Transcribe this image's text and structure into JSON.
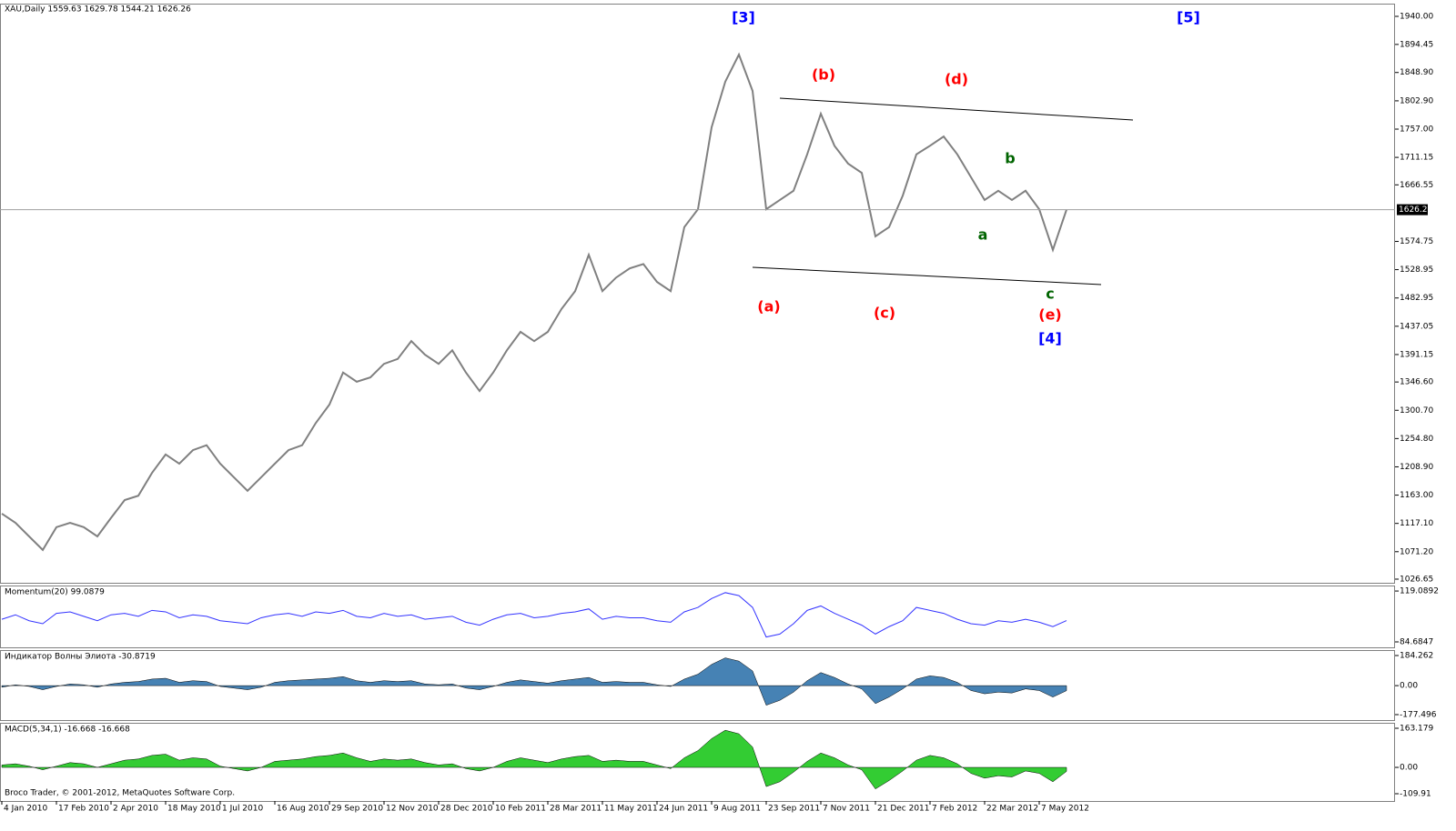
{
  "chart_data": [
    {
      "type": "line",
      "title": "XAU,Daily  1559.63 1629.78 1544.21 1626.26",
      "color": "#808080",
      "categories": [
        "4 Jan 2010",
        null,
        null,
        null,
        "17 Feb 2010",
        null,
        null,
        null,
        "2 Apr 2010",
        null,
        null,
        null,
        "18 May 2010",
        null,
        null,
        null,
        "1 Jul 2010",
        null,
        null,
        null,
        "16 Aug 2010",
        null,
        null,
        null,
        "29 Sep 2010",
        null,
        null,
        null,
        "12 Nov 2010",
        null,
        null,
        null,
        "28 Dec 2010",
        null,
        null,
        null,
        "10 Feb 2011",
        null,
        null,
        null,
        "28 Mar 2011",
        null,
        null,
        null,
        "11 May 2011",
        null,
        null,
        null,
        "24 Jun 2011",
        null,
        null,
        null,
        "9 Aug 2011",
        null,
        null,
        null,
        "23 Sep 2011",
        null,
        null,
        null,
        "7 Nov 2011",
        null,
        null,
        null,
        "21 Dec 2011",
        null,
        null,
        null,
        "7 Feb 2012",
        null,
        null,
        null,
        "22 Mar 2012",
        null,
        null,
        null,
        "7 May 2012",
        null,
        null
      ],
      "values": [
        1133,
        1118,
        1096,
        1074,
        1111,
        1118,
        1111,
        1096,
        1126,
        1155,
        1162,
        1199,
        1229,
        1214,
        1236,
        1244,
        1214,
        1192,
        1170,
        1192,
        1214,
        1236,
        1244,
        1280,
        1310,
        1362,
        1347,
        1354,
        1376,
        1384,
        1413,
        1391,
        1376,
        1398,
        1362,
        1332,
        1362,
        1398,
        1428,
        1413,
        1428,
        1465,
        1494,
        1553,
        1494,
        1516,
        1531,
        1538,
        1509,
        1494,
        1598,
        1627,
        1760,
        1834,
        1878,
        1819,
        1627,
        1642,
        1657,
        1716,
        1782,
        1730,
        1701,
        1686,
        1583,
        1598,
        1649,
        1716,
        1730,
        1745,
        1716,
        1679,
        1642,
        1657,
        1642,
        1657,
        1627,
        1561,
        1626.26
      ],
      "current_price": 1626.26,
      "ylim": [
        1022.2,
        1951.8
      ],
      "yticks": [
        {
          "value": 1940,
          "label": "1940.00"
        },
        {
          "value": 1894.45,
          "label": "1894.45"
        },
        {
          "value": 1848.9,
          "label": "1848.90"
        },
        {
          "value": 1802.9,
          "label": "1802.90"
        },
        {
          "value": 1757,
          "label": "1757.00"
        },
        {
          "value": 1711.15,
          "label": "1711.15"
        },
        {
          "value": 1666.55,
          "label": "1666.55"
        },
        {
          "value": 1574.75,
          "label": "1574.75"
        },
        {
          "value": 1528.95,
          "label": "1528.95"
        },
        {
          "value": 1482.95,
          "label": "1482.95"
        },
        {
          "value": 1437.05,
          "label": "1437.05"
        },
        {
          "value": 1391.15,
          "label": "1391.15"
        },
        {
          "value": 1346.6,
          "label": "1346.60"
        },
        {
          "value": 1300.7,
          "label": "1300.70"
        },
        {
          "value": 1254.8,
          "label": "1254.80"
        },
        {
          "value": 1208.9,
          "label": "1208.90"
        },
        {
          "value": 1163,
          "label": "1163.00"
        },
        {
          "value": 1117.1,
          "label": "1117.10"
        },
        {
          "value": 1071.2,
          "label": "1071.20"
        },
        {
          "value": 1026.65,
          "label": "1026.65"
        }
      ],
      "annotations": [
        {
          "text": "[3]",
          "color": "#0000ff"
        },
        {
          "text": "[5]",
          "color": "#0000ff"
        },
        {
          "text": "(b)",
          "color": "#ff0000"
        },
        {
          "text": "(d)",
          "color": "#ff0000"
        },
        {
          "text": "b",
          "color": "#006400"
        },
        {
          "text": "a",
          "color": "#006400"
        },
        {
          "text": "(a)",
          "color": "#ff0000"
        },
        {
          "text": "(c)",
          "color": "#ff0000"
        },
        {
          "text": "c",
          "color": "#006400"
        },
        {
          "text": "(e)",
          "color": "#ff0000"
        },
        {
          "text": "[4]",
          "color": "#0000ff"
        }
      ]
    },
    {
      "type": "line",
      "title": "Momentum(20) 99.0879",
      "color": "#3333ff",
      "values": [
        100,
        103,
        99,
        97,
        104,
        105,
        102,
        99,
        103,
        104,
        102,
        106,
        105,
        101,
        103,
        102,
        99,
        98,
        97,
        101,
        103,
        104,
        102,
        105,
        104,
        106,
        102,
        101,
        104,
        102,
        103,
        100,
        101,
        102,
        98,
        96,
        100,
        103,
        104,
        101,
        102,
        104,
        105,
        107,
        100,
        102,
        101,
        101,
        99,
        98,
        105,
        108,
        114,
        118,
        116,
        108,
        88,
        90,
        97,
        106,
        109,
        104,
        100,
        96,
        90,
        95,
        99,
        108,
        106,
        104,
        100,
        97,
        96,
        99,
        98,
        100,
        98,
        95,
        99.0879
      ],
      "ylim": [
        81.0,
        122.2
      ],
      "yticks": [
        119.0892,
        84.6847
      ]
    },
    {
      "type": "area",
      "title": "Индикатор Волны Элиота -30.8719",
      "color": "#4682b4",
      "values": [
        -10,
        5,
        -5,
        -25,
        -5,
        10,
        5,
        -10,
        10,
        20,
        25,
        40,
        45,
        20,
        30,
        25,
        -5,
        -15,
        -25,
        -10,
        20,
        30,
        35,
        40,
        45,
        55,
        30,
        20,
        30,
        25,
        30,
        10,
        5,
        10,
        -15,
        -25,
        -5,
        20,
        35,
        25,
        15,
        30,
        40,
        50,
        20,
        25,
        20,
        20,
        5,
        -5,
        40,
        70,
        130,
        170,
        150,
        90,
        -120,
        -90,
        -40,
        30,
        80,
        50,
        10,
        -20,
        -110,
        -70,
        -20,
        40,
        60,
        50,
        20,
        -30,
        -50,
        -40,
        -45,
        -20,
        -30,
        -70,
        -30.8719
      ],
      "ylim": [
        -210.9,
        212.1
      ],
      "yticks": [
        184.262,
        {
          "value": 0,
          "label": "0.00"
        },
        -177.496
      ]
    },
    {
      "type": "area",
      "title": "MACD(5,34,1) -16.668 -16.668",
      "color": "#33cc33",
      "values": [
        10,
        15,
        5,
        -10,
        5,
        20,
        15,
        0,
        15,
        30,
        35,
        50,
        55,
        30,
        40,
        35,
        5,
        -5,
        -15,
        0,
        25,
        30,
        35,
        45,
        50,
        60,
        40,
        25,
        35,
        30,
        35,
        20,
        10,
        15,
        -5,
        -15,
        0,
        25,
        40,
        30,
        20,
        35,
        45,
        50,
        25,
        30,
        25,
        25,
        10,
        -5,
        40,
        70,
        120,
        155,
        140,
        85,
        -80,
        -60,
        -20,
        25,
        60,
        40,
        10,
        -10,
        -90,
        -55,
        -15,
        30,
        50,
        40,
        15,
        -25,
        -45,
        -35,
        -40,
        -15,
        -25,
        -60,
        -16.668
      ],
      "ylim": [
        -136.4,
        182.1
      ],
      "yticks": [
        163.179,
        {
          "value": 0,
          "label": "0.00"
        },
        -109.91
      ]
    }
  ],
  "footer": "Broco Trader, © 2001-2012, MetaQuotes Software Corp."
}
